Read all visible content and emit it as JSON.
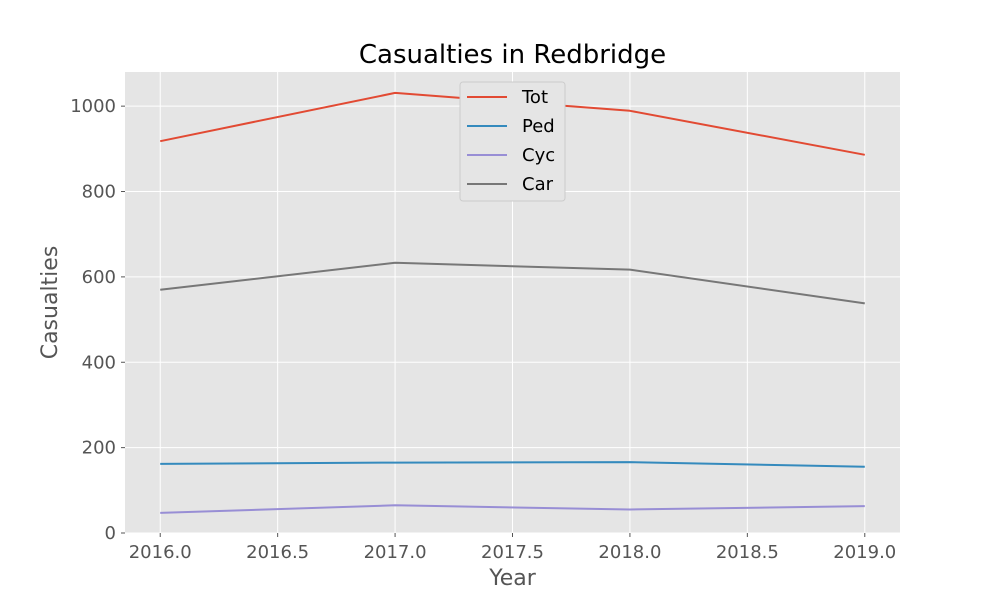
{
  "chart_data": {
    "type": "line",
    "title": "Casualties in Redbridge",
    "xlabel": "Year",
    "ylabel": "Casualties",
    "x": [
      2016,
      2017,
      2018,
      2019
    ],
    "xlim": [
      2015.85,
      2019.15
    ],
    "ylim": [
      0,
      1080
    ],
    "xticks": [
      2016.0,
      2016.5,
      2017.0,
      2017.5,
      2018.0,
      2018.5,
      2019.0
    ],
    "xtick_labels": [
      "2016.0",
      "2016.5",
      "2017.0",
      "2017.5",
      "2018.0",
      "2018.5",
      "2019.0"
    ],
    "yticks": [
      0,
      200,
      400,
      600,
      800,
      1000
    ],
    "ytick_labels": [
      "0",
      "200",
      "400",
      "600",
      "800",
      "1000"
    ],
    "grid": true,
    "legend_position": "top-center",
    "background_color": "#e5e5e5",
    "series": [
      {
        "name": "Tot",
        "color": "#e24a33",
        "values": [
          918,
          1031,
          989,
          886
        ]
      },
      {
        "name": "Ped",
        "color": "#348abd",
        "values": [
          162,
          165,
          166,
          155
        ]
      },
      {
        "name": "Cyc",
        "color": "#988ed5",
        "values": [
          47,
          65,
          55,
          63
        ]
      },
      {
        "name": "Car",
        "color": "#777777",
        "values": [
          570,
          633,
          617,
          538
        ]
      }
    ]
  }
}
